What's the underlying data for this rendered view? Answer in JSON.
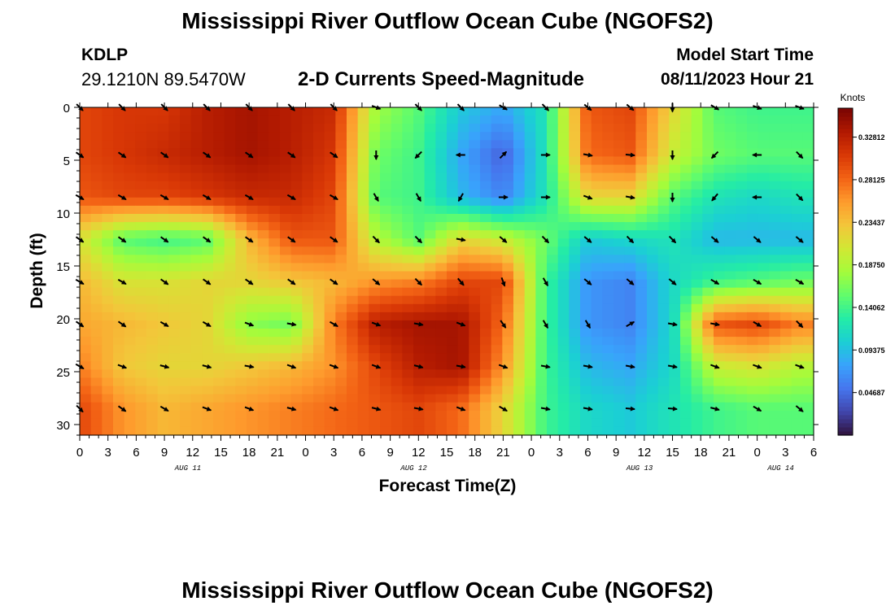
{
  "header": {
    "title": "Mississippi River Outflow Ocean Cube (NGOFS2)",
    "station_id": "KDLP",
    "station_coords": "29.1210N  89.5470W",
    "subtitle": "2-D Currents Speed-Magnitude",
    "model_start_label": "Model Start Time",
    "model_start_value": "08/11/2023 Hour 21"
  },
  "footer": {
    "title": "Mississippi River Outflow Ocean Cube (NGOFS2)"
  },
  "colors": {
    "scale": [
      "#30123b",
      "#4145ab",
      "#4675ed",
      "#39a2fc",
      "#1bcfd4",
      "#24eca6",
      "#61fc6c",
      "#a4fc3b",
      "#d1e834",
      "#f3c63a",
      "#fe9b2d",
      "#f36315",
      "#d93806",
      "#b11901",
      "#7a0403"
    ],
    "arrow": "#000000"
  },
  "chart_data": {
    "type": "heatmap",
    "title": "2-D Currents Speed-Magnitude",
    "xlabel": "Forecast Time(Z)",
    "ylabel": "Depth (ft)",
    "x_unit": "hours since 08/11/2023 00Z",
    "xlim": [
      0,
      78
    ],
    "ylim": [
      31,
      0
    ],
    "x_ticks": [
      0,
      3,
      6,
      9,
      12,
      15,
      18,
      21,
      24,
      27,
      30,
      33,
      36,
      39,
      42,
      45,
      48,
      51,
      54,
      57,
      60,
      63,
      66,
      69,
      72,
      75,
      78
    ],
    "x_tick_labels": [
      "0",
      "3",
      "6",
      "9",
      "12",
      "15",
      "18",
      "21",
      "0",
      "3",
      "6",
      "9",
      "12",
      "15",
      "18",
      "21",
      "0",
      "3",
      "6",
      "9",
      "12",
      "15",
      "18",
      "21",
      "0",
      "3",
      "6"
    ],
    "date_labels": [
      {
        "text": "AUG 11",
        "x": 11.5
      },
      {
        "text": "AUG 12",
        "x": 35.5
      },
      {
        "text": "AUG 13",
        "x": 59.5
      },
      {
        "text": "AUG 14",
        "x": 74.5
      }
    ],
    "y_ticks": [
      0,
      5,
      10,
      15,
      20,
      25,
      30
    ],
    "colorbar": {
      "label": "Knots",
      "ticks": [
        0.32812,
        0.28125,
        0.23437,
        0.1875,
        0.14062,
        0.09375,
        0.04687
      ],
      "tick_labels": [
        "0.32812",
        "0.28125",
        "0.23437",
        "0.18750",
        "0.14062",
        "0.09375",
        "0.04687"
      ],
      "range": [
        0.0,
        0.36
      ]
    },
    "grid": {
      "times": [
        0,
        4.5,
        9,
        13.5,
        18,
        22.5,
        27,
        31.5,
        36,
        40.5,
        45,
        49.5,
        54,
        58.5,
        63,
        67.5,
        72,
        76.5
      ],
      "depths": [
        0,
        4.5,
        8.5,
        12.5,
        16.5,
        20.5,
        24.5,
        28.5
      ],
      "speed": [
        [
          0.3,
          0.31,
          0.31,
          0.33,
          0.34,
          0.33,
          0.32,
          0.18,
          0.15,
          0.1,
          0.08,
          0.12,
          0.29,
          0.3,
          0.22,
          0.15,
          0.14,
          0.14
        ],
        [
          0.3,
          0.31,
          0.32,
          0.33,
          0.34,
          0.33,
          0.31,
          0.16,
          0.14,
          0.08,
          0.04,
          0.12,
          0.28,
          0.29,
          0.2,
          0.16,
          0.15,
          0.15
        ],
        [
          0.29,
          0.3,
          0.3,
          0.31,
          0.32,
          0.32,
          0.3,
          0.15,
          0.14,
          0.09,
          0.06,
          0.12,
          0.22,
          0.22,
          0.15,
          0.12,
          0.11,
          0.12
        ],
        [
          0.21,
          0.15,
          0.14,
          0.15,
          0.24,
          0.29,
          0.29,
          0.19,
          0.15,
          0.22,
          0.2,
          0.16,
          0.1,
          0.11,
          0.12,
          0.09,
          0.09,
          0.09
        ],
        [
          0.24,
          0.21,
          0.21,
          0.22,
          0.22,
          0.23,
          0.24,
          0.26,
          0.27,
          0.3,
          0.3,
          0.14,
          0.07,
          0.06,
          0.11,
          0.14,
          0.15,
          0.16
        ],
        [
          0.25,
          0.24,
          0.23,
          0.22,
          0.17,
          0.16,
          0.27,
          0.33,
          0.34,
          0.34,
          0.28,
          0.14,
          0.07,
          0.06,
          0.11,
          0.29,
          0.3,
          0.27
        ],
        [
          0.27,
          0.23,
          0.22,
          0.22,
          0.23,
          0.24,
          0.26,
          0.3,
          0.33,
          0.34,
          0.26,
          0.14,
          0.09,
          0.08,
          0.11,
          0.2,
          0.21,
          0.19
        ],
        [
          0.3,
          0.26,
          0.24,
          0.25,
          0.26,
          0.27,
          0.28,
          0.29,
          0.3,
          0.28,
          0.22,
          0.14,
          0.11,
          0.1,
          0.12,
          0.14,
          0.15,
          0.15
        ]
      ]
    },
    "vectors": {
      "times": [
        0,
        4.5,
        9,
        13.5,
        18,
        22.5,
        27,
        31.5,
        36,
        40.5,
        45,
        49.5,
        54,
        58.5,
        63,
        67.5,
        72,
        76.5
      ],
      "depths": [
        0,
        4.5,
        8.5,
        12.5,
        16.5,
        20.5,
        24.5,
        28.5
      ],
      "direction_deg": [
        [
          135,
          135,
          135,
          135,
          135,
          135,
          135,
          110,
          135,
          135,
          120,
          135,
          130,
          130,
          180,
          120,
          110,
          110
        ],
        [
          125,
          125,
          125,
          125,
          125,
          125,
          125,
          180,
          225,
          270,
          45,
          90,
          100,
          95,
          180,
          225,
          270,
          135
        ],
        [
          120,
          120,
          120,
          120,
          120,
          120,
          120,
          150,
          150,
          210,
          90,
          90,
          110,
          100,
          180,
          220,
          270,
          135
        ],
        [
          125,
          125,
          125,
          125,
          125,
          125,
          125,
          135,
          135,
          100,
          130,
          135,
          130,
          135,
          135,
          130,
          130,
          130
        ],
        [
          120,
          120,
          125,
          125,
          125,
          125,
          125,
          130,
          135,
          140,
          160,
          150,
          130,
          130,
          130,
          120,
          120,
          120
        ],
        [
          125,
          125,
          120,
          120,
          110,
          100,
          120,
          110,
          100,
          110,
          145,
          150,
          150,
          60,
          100,
          100,
          120,
          135
        ],
        [
          120,
          110,
          105,
          105,
          100,
          110,
          110,
          110,
          105,
          100,
          110,
          100,
          100,
          100,
          100,
          110,
          110,
          110
        ],
        [
          135,
          125,
          120,
          110,
          110,
          105,
          110,
          105,
          100,
          110,
          120,
          100,
          100,
          95,
          95,
          105,
          120,
          130
        ]
      ]
    }
  }
}
